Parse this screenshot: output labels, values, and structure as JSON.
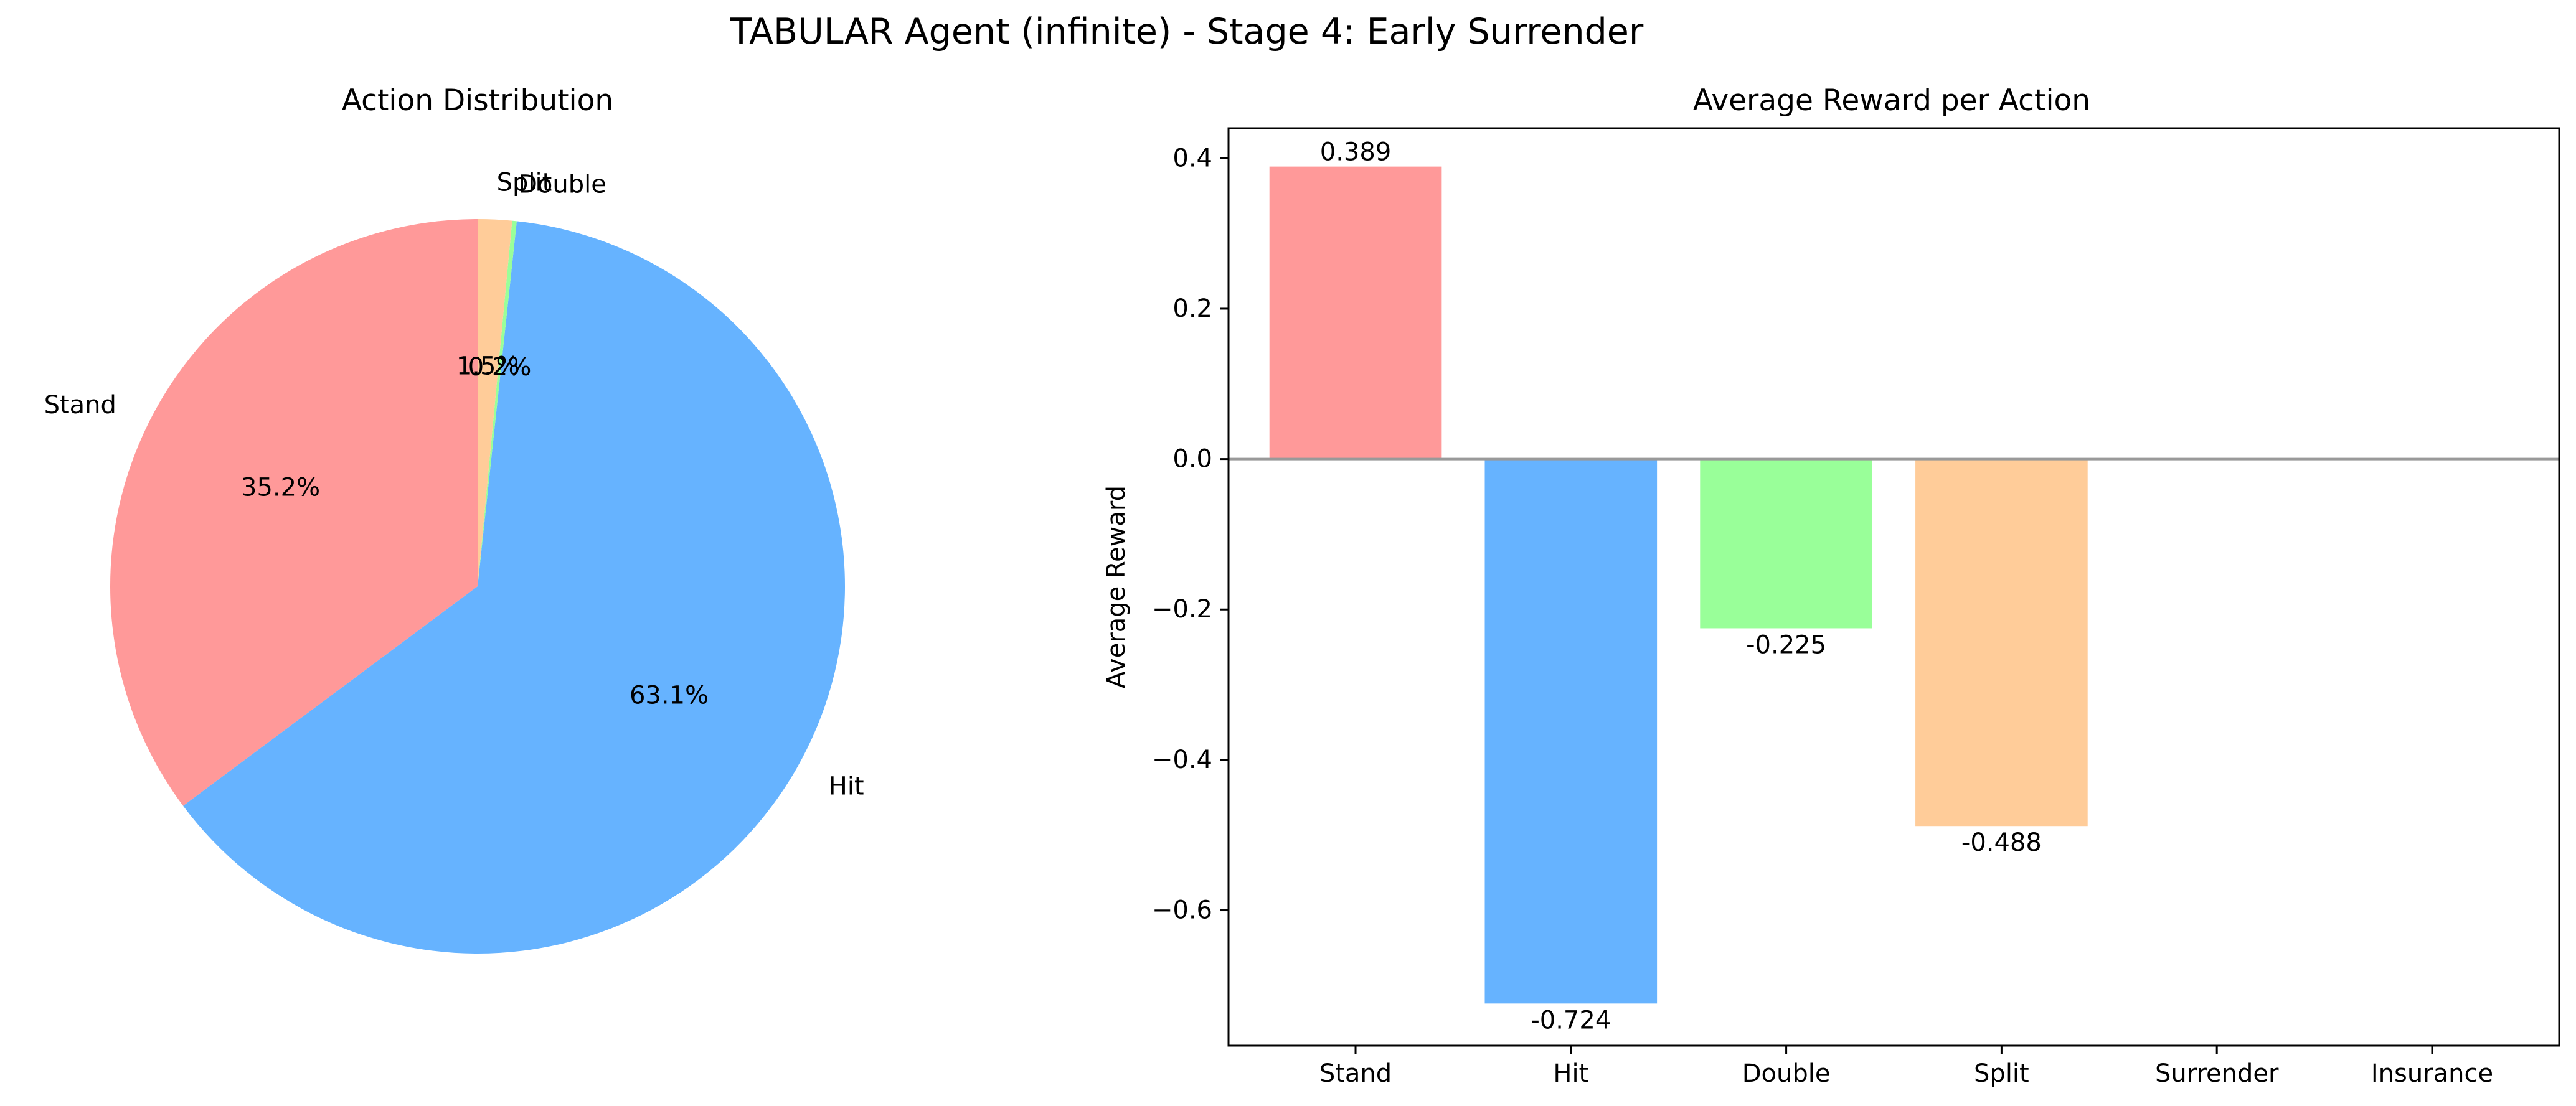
{
  "figure": {
    "title": "TABULAR Agent (infinite) - Stage 4: Early Surrender"
  },
  "chart_data": [
    {
      "type": "pie",
      "title": "Action Distribution",
      "labels": [
        "Stand",
        "Hit",
        "Double",
        "Split"
      ],
      "values": [
        35.2,
        63.1,
        0.2,
        1.5
      ],
      "percent_labels": [
        "35.2%",
        "63.1%",
        "0.2%",
        "1.5%"
      ],
      "colors": [
        "#ff9999",
        "#66b3ff",
        "#99ff99",
        "#ffcc99"
      ],
      "start_angle_deg": 90,
      "direction": "counterclockwise"
    },
    {
      "type": "bar",
      "title": "Average Reward per Action",
      "categories": [
        "Stand",
        "Hit",
        "Double",
        "Split",
        "Surrender",
        "Insurance"
      ],
      "values": [
        0.389,
        -0.724,
        -0.225,
        -0.488,
        null,
        null
      ],
      "value_labels": [
        "0.389",
        "-0.724",
        "-0.225",
        "-0.488",
        "",
        ""
      ],
      "colors": [
        "#ff9999",
        "#66b3ff",
        "#99ff99",
        "#ffcc99"
      ],
      "xlabel": "",
      "ylabel": "Average Reward",
      "ylim": [
        -0.78,
        0.44
      ],
      "yticks": [
        0.4,
        0.2,
        0.0,
        -0.2,
        -0.4,
        -0.6
      ],
      "ytick_labels": [
        "0.4",
        "0.2",
        "0.0",
        "−0.2",
        "−0.4",
        "−0.6"
      ],
      "zero_line_color": "#999999",
      "grid": false
    }
  ]
}
